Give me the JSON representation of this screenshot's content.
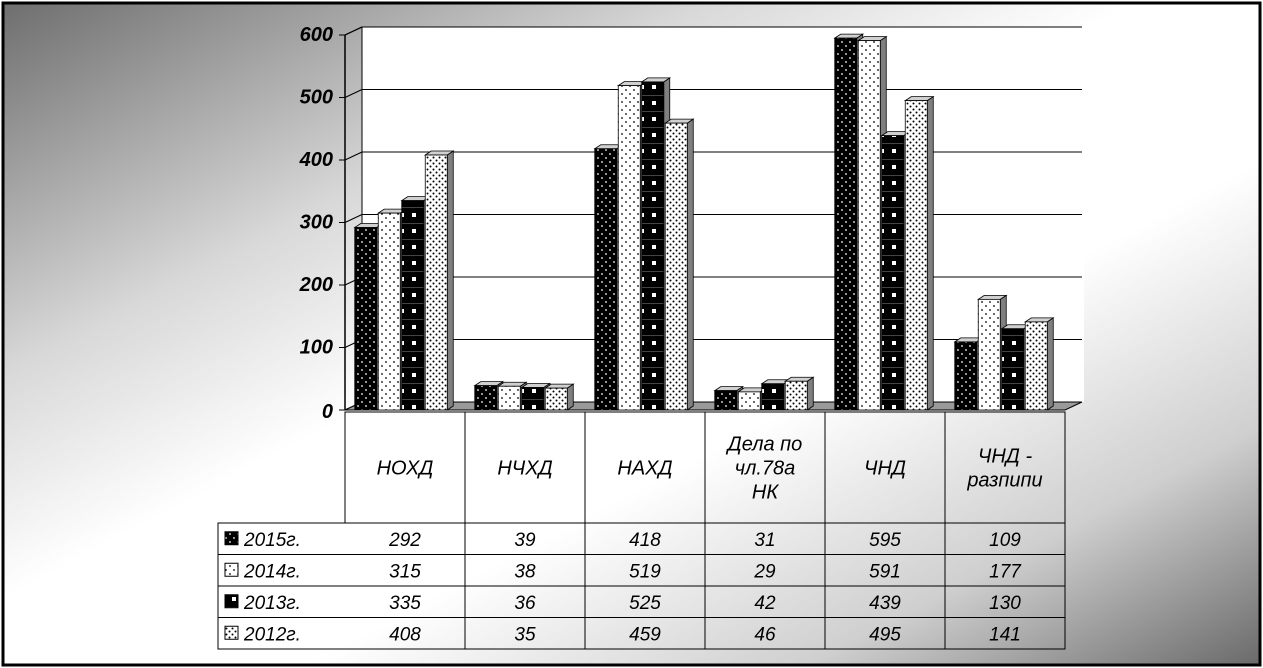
{
  "chart_data": {
    "type": "bar",
    "categories": [
      [
        "НОХД"
      ],
      [
        "НЧХД"
      ],
      [
        "НАХД"
      ],
      [
        "Дела по",
        "чл.78а",
        "НК"
      ],
      [
        "ЧНД"
      ],
      [
        "ЧНД -",
        "разпипи"
      ]
    ],
    "series": [
      {
        "name": "2015г.",
        "values": [
          292,
          39,
          418,
          31,
          595,
          109
        ],
        "pattern": "dark-dots"
      },
      {
        "name": "2014г.",
        "values": [
          315,
          38,
          519,
          29,
          591,
          177
        ],
        "pattern": "light-dots"
      },
      {
        "name": "2013г.",
        "values": [
          335,
          36,
          525,
          42,
          439,
          130
        ],
        "pattern": "dark-squares"
      },
      {
        "name": "2012г.",
        "values": [
          408,
          35,
          459,
          46,
          495,
          141
        ],
        "pattern": "dense-dots"
      }
    ],
    "y_ticks": [
      "0",
      "100",
      "200",
      "300",
      "400",
      "500",
      "600"
    ],
    "ylim": [
      0,
      600
    ],
    "grid": true,
    "legend": "data-table",
    "colors": {
      "dark": "#000000",
      "light": "#ffffff",
      "gridline": "#000000"
    }
  }
}
